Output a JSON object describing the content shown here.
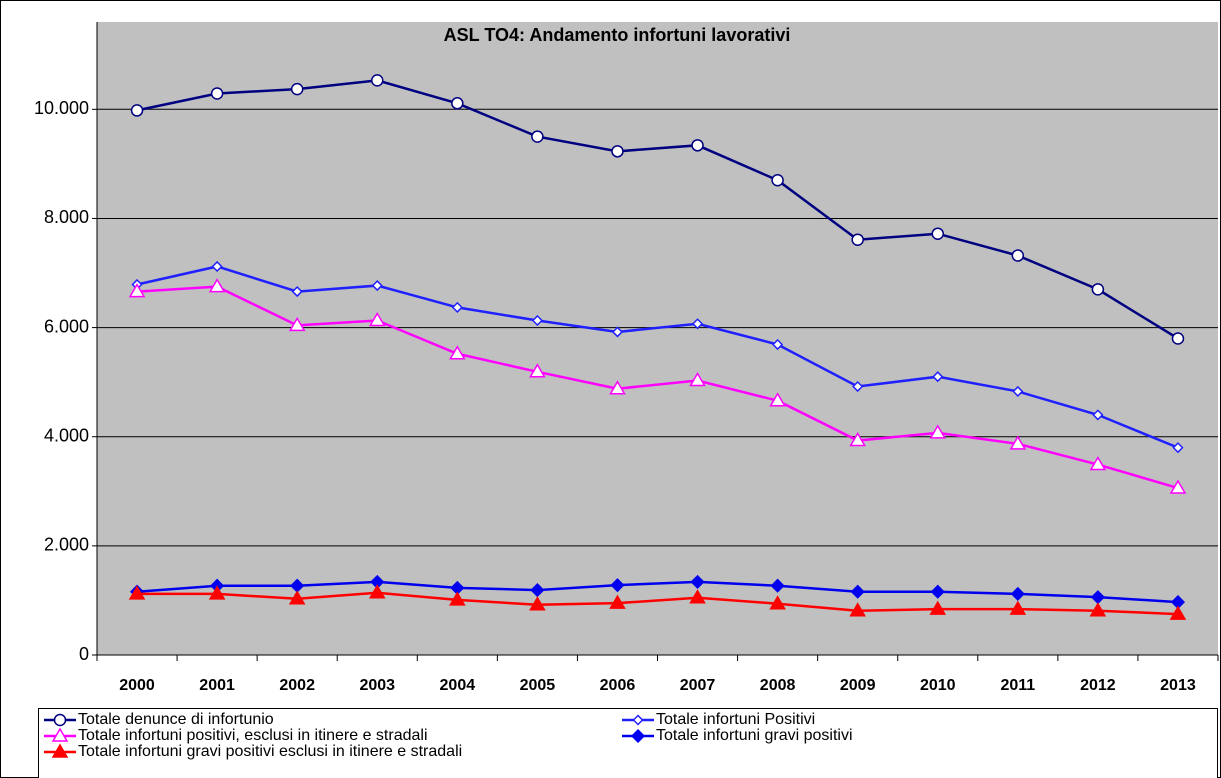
{
  "chart_data": {
    "type": "line",
    "title": "ASL TO4: Andamento infortuni lavorativi",
    "categories": [
      "2000",
      "2001",
      "2002",
      "2003",
      "2004",
      "2005",
      "2006",
      "2007",
      "2008",
      "2009",
      "2010",
      "2011",
      "2012",
      "2013"
    ],
    "series": [
      {
        "name": "Totale denunce di infortunio",
        "color": "#000080",
        "marker": "circle",
        "marker_fill": "#ffffff",
        "values": [
          9980,
          10290,
          10370,
          10530,
          10110,
          9500,
          9230,
          9340,
          8700,
          7610,
          7720,
          7320,
          6700,
          5800
        ]
      },
      {
        "name": "Totale infortuni Positivi",
        "color": "#2020ff",
        "marker": "diamond-small",
        "marker_fill": "#ffffff",
        "values": [
          6790,
          7120,
          6660,
          6770,
          6370,
          6130,
          5920,
          6070,
          5690,
          4920,
          5100,
          4830,
          4400,
          3800
        ]
      },
      {
        "name": "Totale infortuni positivi, esclusi in itinere e stradali",
        "color": "#ff00ff",
        "marker": "triangle",
        "marker_fill": "#ffffff",
        "values": [
          6660,
          6750,
          6040,
          6130,
          5520,
          5190,
          4880,
          5030,
          4660,
          3930,
          4070,
          3870,
          3490,
          3060
        ]
      },
      {
        "name": "Totale infortuni gravi positivi",
        "color": "#0000ee",
        "marker": "diamond",
        "marker_fill": "#0000ee",
        "values": [
          1160,
          1270,
          1270,
          1340,
          1230,
          1190,
          1280,
          1340,
          1270,
          1160,
          1160,
          1120,
          1060,
          970
        ]
      },
      {
        "name": "Totale infortuni gravi positivi esclusi in itinere e stradali",
        "color": "#ff0000",
        "marker": "triangle",
        "marker_fill": "#ff0000",
        "values": [
          1120,
          1120,
          1030,
          1140,
          1010,
          920,
          950,
          1050,
          940,
          810,
          840,
          840,
          810,
          750
        ]
      }
    ],
    "ylim": [
      0,
      11600
    ],
    "yticks": [
      0,
      {
        "value": 2000,
        "label": "2.000"
      },
      {
        "value": 4000,
        "label": "4.000"
      },
      {
        "value": 6000,
        "label": "6.000"
      },
      {
        "value": 8000,
        "label": "8.000"
      },
      {
        "value": 10000,
        "label": "10.000"
      }
    ],
    "grid": true,
    "plot_color": "#c0c0c0",
    "legend": "bottom"
  }
}
